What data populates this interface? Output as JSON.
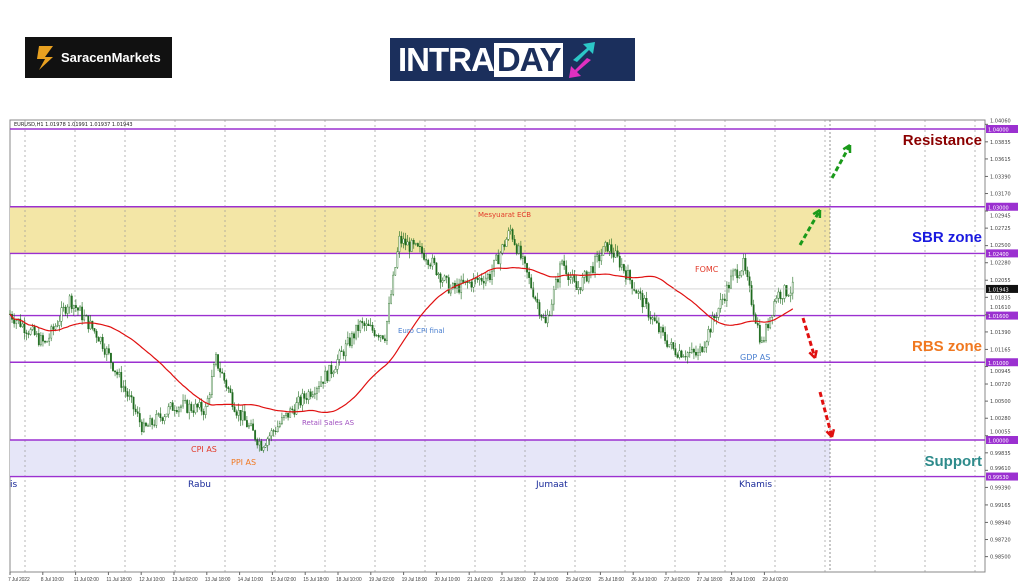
{
  "logos": {
    "left": "SaracenMarkets",
    "center_a": "INTRA",
    "center_b": "DAY"
  },
  "chart_data": {
    "type": "candlestick",
    "header": "EURUSD,H1  1.01978 1.01991 1.01937 1.01943",
    "symbol": "EURUSD",
    "timeframe": "H1",
    "ylim": [
      0.982,
      1.041
    ],
    "grid": "vertical dotted",
    "current_price": "1.01943",
    "y_ticks": [
      "1.04060",
      "1.03835",
      "1.03615",
      "1.03390",
      "1.03170",
      "1.02945",
      "1.02725",
      "1.02500",
      "1.02280",
      "1.02055",
      "1.01835",
      "1.01610",
      "1.01390",
      "1.01165",
      "1.00945",
      "1.00720",
      "1.00500",
      "1.00280",
      "1.00055",
      "0.99835",
      "0.99610",
      "0.99390",
      "0.99165",
      "0.98940",
      "0.98720",
      "0.98500",
      "0.98275"
    ],
    "x_ticks": [
      "7 Jul 2022",
      "8 Jul 10:00",
      "11 Jul 02:00",
      "11 Jul 18:00",
      "12 Jul 10:00",
      "13 Jul 02:00",
      "13 Jul 18:00",
      "14 Jul 10:00",
      "15 Jul 02:00",
      "15 Jul 18:00",
      "18 Jul 10:00",
      "19 Jul 02:00",
      "19 Jul 18:00",
      "20 Jul 10:00",
      "21 Jul 02:00",
      "21 Jul 18:00",
      "22 Jul 10:00",
      "25 Jul 02:00",
      "25 Jul 18:00",
      "26 Jul 10:00",
      "27 Jul 02:00",
      "27 Jul 18:00",
      "28 Jul 10:00",
      "29 Jul 02:00"
    ],
    "price_path": {
      "bar": [
        0,
        17,
        29,
        44,
        65,
        80,
        95,
        100,
        110,
        122,
        137,
        156,
        170,
        182,
        189,
        202,
        214,
        233,
        243,
        260,
        268,
        275,
        290,
        297,
        315,
        322,
        334,
        351,
        356,
        365,
        372,
        379,
        380
      ],
      "close": [
        1.0162,
        1.0123,
        1.0181,
        1.013,
        1.0013,
        1.0045,
        1.0039,
        1.0103,
        1.0039,
        0.9994,
        1.0039,
        1.009,
        1.0148,
        1.0135,
        1.0257,
        1.0238,
        1.0193,
        1.0212,
        1.027,
        1.0148,
        1.0231,
        1.0193,
        1.025,
        1.0225,
        1.0141,
        1.0116,
        1.0109,
        1.0212,
        1.0225,
        1.0123,
        1.0187,
        1.0193,
        1.01943
      ]
    },
    "levels": [
      {
        "price": 1.04,
        "label": "1.04000"
      },
      {
        "price": 1.03,
        "label": "1.03000"
      },
      {
        "price": 1.024,
        "label": "1.02400"
      },
      {
        "price": 1.016,
        "label": "1.01600"
      },
      {
        "price": 1.01,
        "label": "1.01000"
      },
      {
        "price": 1.0,
        "label": "1.00000"
      },
      {
        "price": 0.9953,
        "label": "0.99530"
      }
    ],
    "zones": [
      {
        "name": "SBR zone",
        "from": 1.024,
        "to": 1.03,
        "color": "#f3e6a6",
        "label_color": "#1a1adf"
      },
      {
        "name": "Support",
        "from": 0.9953,
        "to": 1.0,
        "color": "#e6e6f8",
        "label_color": "#2e8b8b"
      }
    ],
    "zone_labels": [
      {
        "text": "Resistance",
        "color": "#8b0000"
      },
      {
        "text": "SBR zone",
        "color": "#1a1adf"
      },
      {
        "text": "RBS zone",
        "color": "#f07820"
      },
      {
        "text": "Support",
        "color": "#2e8b8b"
      }
    ],
    "events": [
      {
        "text": "Mesyuarat ECB",
        "color": "#e23a2a"
      },
      {
        "text": "Euro CPI final",
        "color": "#4a7fd0"
      },
      {
        "text": "Retail Sales AS",
        "color": "#a050c0"
      },
      {
        "text": "CPI AS",
        "color": "#e23a2a"
      },
      {
        "text": "PPI AS",
        "color": "#f07820"
      },
      {
        "text": "FOMC",
        "color": "#e23a2a"
      },
      {
        "text": "GDP AS",
        "color": "#4a7fd0"
      }
    ],
    "days": [
      "is",
      "Rabu",
      "Jumaat",
      "Khamis"
    ],
    "colors": {
      "candle": "#1e6b1e",
      "ma": "#e01010",
      "level": "#9b30d0",
      "up_arrow": "#1a9a1a",
      "down_arrow": "#e01010"
    }
  }
}
